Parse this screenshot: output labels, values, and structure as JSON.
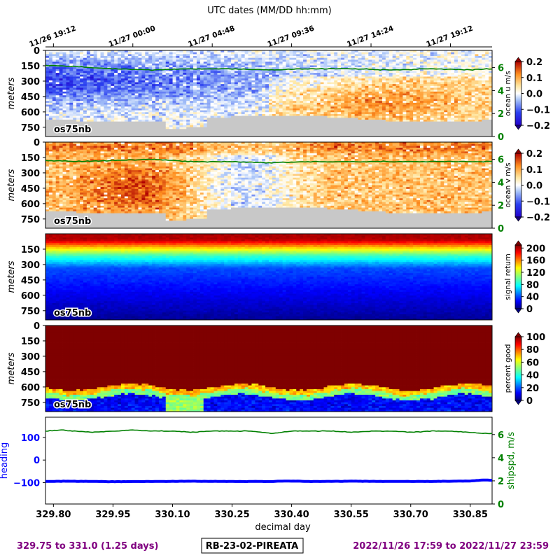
{
  "header": {
    "top_axis_title": "UTC dates (MM/DD hh:mm)",
    "top_ticks": [
      "11/26 19:12",
      "11/27 00:00",
      "11/27 04:48",
      "11/27 09:36",
      "11/27 14:24",
      "11/27 19:12"
    ]
  },
  "footer": {
    "left": "329.75 to 331.0 (1.25 days)",
    "center": "RB-23-02-PIREATA",
    "right": "2022/11/26 17:59 to 2022/11/27 23:59"
  },
  "colors": {
    "footer_text": "#800080",
    "shipspd": "#008000",
    "heading": "#0000ff",
    "nodata": "#c8c8c8"
  },
  "chart_data": [
    {
      "type": "heatmap",
      "panel": "ocean_u",
      "label": "os75nb",
      "ylabel": "meters",
      "yticks": [
        "0",
        "150",
        "300",
        "450",
        "600",
        "750"
      ],
      "ylim": [
        840,
        0
      ],
      "colorbar_label": "ocean u m/s",
      "colorbar_ticks": [
        "0.2",
        "0.1",
        "0.0",
        "−0.1",
        "−0.2"
      ],
      "clim": [
        -0.2,
        0.2
      ],
      "colormap": "bwr",
      "right_axis_ticks": [
        "6",
        "4",
        "2",
        "0"
      ],
      "right_axis_range": [
        0,
        7.5
      ],
      "overlay_series": {
        "name": "shipspd",
        "x": [
          329.78,
          329.85,
          329.95,
          330.05,
          330.15,
          330.25,
          330.35,
          330.45,
          330.55,
          330.65,
          330.75,
          330.85,
          330.9
        ],
        "y": [
          6.2,
          6.1,
          5.9,
          5.8,
          5.9,
          5.9,
          5.8,
          5.9,
          5.9,
          5.8,
          5.9,
          5.8,
          5.9
        ]
      }
    },
    {
      "type": "heatmap",
      "panel": "ocean_v",
      "label": "os75nb",
      "ylabel": "meters",
      "yticks": [
        "0",
        "150",
        "300",
        "450",
        "600",
        "750"
      ],
      "ylim": [
        840,
        0
      ],
      "colorbar_label": "ocean v m/s",
      "colorbar_ticks": [
        "0.2",
        "0.1",
        "0.0",
        "−0.1",
        "−0.2"
      ],
      "clim": [
        -0.2,
        0.2
      ],
      "colormap": "bwr",
      "right_axis_ticks": [
        "6",
        "4",
        "2",
        "0"
      ],
      "right_axis_range": [
        0,
        7.5
      ],
      "overlay_series": {
        "name": "shipspd",
        "x": [
          329.78,
          329.85,
          329.95,
          330.05,
          330.15,
          330.25,
          330.35,
          330.45,
          330.55,
          330.65,
          330.75,
          330.85,
          330.9
        ],
        "y": [
          5.9,
          5.8,
          5.9,
          6.0,
          5.8,
          5.8,
          5.7,
          5.8,
          5.8,
          5.8,
          5.8,
          5.8,
          5.8
        ]
      }
    },
    {
      "type": "heatmap",
      "panel": "signal_return",
      "label": "os75nb",
      "ylabel": "meters",
      "yticks": [
        "150",
        "300",
        "450",
        "600",
        "750"
      ],
      "ylim": [
        840,
        0
      ],
      "colorbar_label": "signal return",
      "colorbar_ticks": [
        "200",
        "160",
        "120",
        "80",
        "40",
        "0"
      ],
      "clim": [
        0,
        210
      ],
      "colormap": "jet"
    },
    {
      "type": "heatmap",
      "panel": "percent_good",
      "label": "os75nb",
      "ylabel": "meters",
      "yticks": [
        "0",
        "150",
        "300",
        "450",
        "600",
        "750"
      ],
      "ylim": [
        840,
        0
      ],
      "colorbar_label": "percent good",
      "colorbar_ticks": [
        "100",
        "80",
        "60",
        "40",
        "20",
        "0"
      ],
      "clim": [
        0,
        100
      ],
      "colormap": "jet"
    },
    {
      "type": "line",
      "panel": "heading_shipspd",
      "xlabel": "decimal day",
      "xticks": [
        "329.80",
        "329.95",
        "330.10",
        "330.25",
        "330.40",
        "330.55",
        "330.70",
        "330.85"
      ],
      "xlim": [
        329.78,
        330.905
      ],
      "ylabel": "heading",
      "yticks": [
        "100",
        "0",
        "−100"
      ],
      "ylim": [
        -195,
        190
      ],
      "y2label": "shipspd, m/s",
      "y2ticks": [
        "6",
        "4",
        "2",
        "0"
      ],
      "y2lim": [
        0,
        7.5
      ],
      "series": [
        {
          "name": "heading",
          "x": [
            329.78,
            329.85,
            329.95,
            330.05,
            330.15,
            330.25,
            330.35,
            330.4,
            330.45,
            330.55,
            330.65,
            330.75,
            330.8,
            330.85,
            330.87,
            330.89,
            330.905
          ],
          "y": [
            -95,
            -94,
            -96,
            -95,
            -94,
            -95,
            -95,
            -93,
            -95,
            -94,
            -95,
            -95,
            -94,
            -93,
            -90,
            -88,
            -90
          ]
        },
        {
          "name": "shipspd",
          "x": [
            329.78,
            329.82,
            329.85,
            329.9,
            329.95,
            330.0,
            330.05,
            330.1,
            330.15,
            330.2,
            330.25,
            330.3,
            330.35,
            330.4,
            330.45,
            330.5,
            330.55,
            330.6,
            330.65,
            330.7,
            330.75,
            330.8,
            330.85,
            330.88,
            330.905
          ],
          "y": [
            6.3,
            6.4,
            6.3,
            6.2,
            6.3,
            6.4,
            6.3,
            6.3,
            6.2,
            6.3,
            6.3,
            6.3,
            6.1,
            6.3,
            6.3,
            6.3,
            6.2,
            6.3,
            6.3,
            6.2,
            6.3,
            6.3,
            6.2,
            6.1,
            6.1
          ]
        }
      ]
    }
  ]
}
